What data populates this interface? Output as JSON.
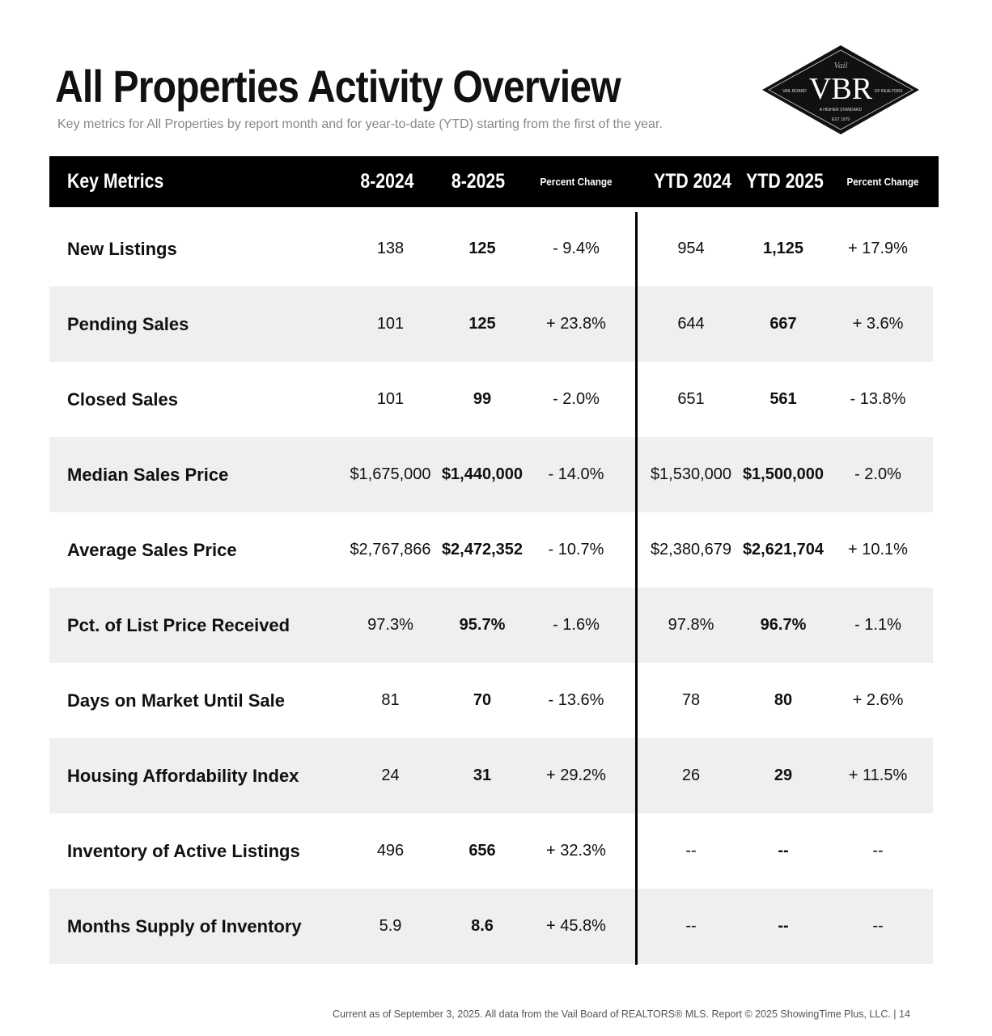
{
  "title": "All Properties Activity Overview",
  "subtitle": "Key metrics for All Properties by report month and for year-to-date (YTD) starting from the first of the year.",
  "logo": {
    "script": "Vail",
    "main": "VBR",
    "left": "VAIL BOARD",
    "right": "OF REALTORS",
    "tagline": "A HIGHER STANDARD",
    "est": "EST 1979"
  },
  "header": {
    "metric": "Key Metrics",
    "m1": "8-2024",
    "m2": "8-2025",
    "pc1": "Percent Change",
    "y1": "YTD 2024",
    "y2": "YTD 2025",
    "pc2": "Percent Change"
  },
  "rows": [
    {
      "label": "New Listings",
      "v": [
        "138",
        "125",
        "- 9.4%",
        "954",
        "1,125",
        "+ 17.9%"
      ]
    },
    {
      "label": "Pending Sales",
      "v": [
        "101",
        "125",
        "+ 23.8%",
        "644",
        "667",
        "+ 3.6%"
      ]
    },
    {
      "label": "Closed Sales",
      "v": [
        "101",
        "99",
        "- 2.0%",
        "651",
        "561",
        "- 13.8%"
      ]
    },
    {
      "label": "Median Sales Price",
      "v": [
        "$1,675,000",
        "$1,440,000",
        "- 14.0%",
        "$1,530,000",
        "$1,500,000",
        "- 2.0%"
      ]
    },
    {
      "label": "Average Sales Price",
      "v": [
        "$2,767,866",
        "$2,472,352",
        "- 10.7%",
        "$2,380,679",
        "$2,621,704",
        "+ 10.1%"
      ]
    },
    {
      "label": "Pct. of List Price Received",
      "v": [
        "97.3%",
        "95.7%",
        "- 1.6%",
        "97.8%",
        "96.7%",
        "- 1.1%"
      ]
    },
    {
      "label": "Days on Market Until Sale",
      "v": [
        "81",
        "70",
        "- 13.6%",
        "78",
        "80",
        "+ 2.6%"
      ]
    },
    {
      "label": "Housing Affordability Index",
      "v": [
        "24",
        "31",
        "+ 29.2%",
        "26",
        "29",
        "+ 11.5%"
      ]
    },
    {
      "label": "Inventory of Active Listings",
      "v": [
        "496",
        "656",
        "+ 32.3%",
        "--",
        "--",
        "--"
      ]
    },
    {
      "label": "Months Supply of Inventory",
      "v": [
        "5.9",
        "8.6",
        "+ 45.8%",
        "--",
        "--",
        "--"
      ]
    }
  ],
  "footer": "Current as of September 3, 2025.  All data from the Vail Board of REALTORS® MLS. Report © 2025 ShowingTime Plus, LLC.  |  14"
}
